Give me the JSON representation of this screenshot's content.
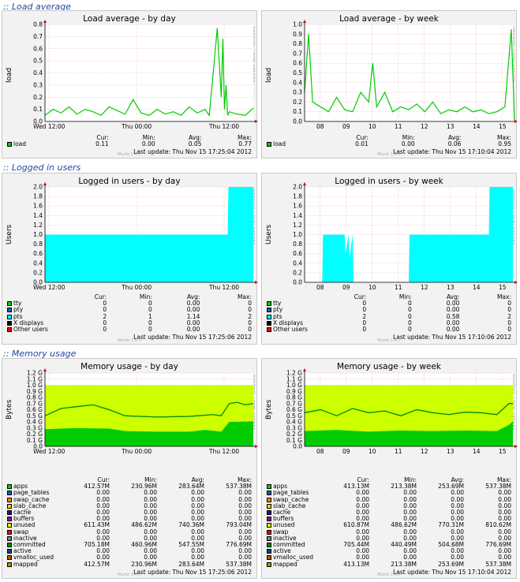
{
  "sections": [
    {
      "title": ":: Load average"
    },
    {
      "title": ":: Logged in users"
    },
    {
      "title": ":: Memory usage"
    }
  ],
  "rrd_label": "RRDTOOL / TOBI OETIKER",
  "munin": "Munin 1.4.7",
  "graphs": [
    {
      "id": "load-day",
      "title": "Load average - by day",
      "ylabel": "load",
      "last_update": "Last update: Thu Nov 15 17:25:04 2012",
      "legend_headers": [
        "Cur:",
        "Min:",
        "Avg:",
        "Max:"
      ],
      "legend": [
        {
          "name": "load",
          "color": "#00cc00",
          "cur": "0.11",
          "min": "0.00",
          "avg": "0.05",
          "max": "0.77"
        }
      ]
    },
    {
      "id": "load-week",
      "title": "Load average - by week",
      "ylabel": "load",
      "last_update": "Last update: Thu Nov 15 17:10:04 2012",
      "legend_headers": [
        "Cur:",
        "Min:",
        "Avg:",
        "Max:"
      ],
      "legend": [
        {
          "name": "load",
          "color": "#00cc00",
          "cur": "0.01",
          "min": "0.00",
          "avg": "0.06",
          "max": "0.95"
        }
      ]
    },
    {
      "id": "users-day",
      "title": "Logged in users - by day",
      "ylabel": "Users",
      "last_update": "Last update: Thu Nov 15 17:25:06 2012",
      "legend_headers": [
        "Cur:",
        "Min:",
        "Avg:",
        "Max:"
      ],
      "legend": [
        {
          "name": "tty",
          "color": "#00cc00",
          "cur": "0",
          "min": "0",
          "avg": "0.00",
          "max": "0"
        },
        {
          "name": "pty",
          "color": "#0066b3",
          "cur": "0",
          "min": "0",
          "avg": "0.00",
          "max": "0"
        },
        {
          "name": "pts",
          "color": "#00ffff",
          "cur": "2",
          "min": "1",
          "avg": "1.14",
          "max": "2"
        },
        {
          "name": "X displays",
          "color": "#000000",
          "cur": "0",
          "min": "0",
          "avg": "0.00",
          "max": "0"
        },
        {
          "name": "Other users",
          "color": "#ff0000",
          "cur": "0",
          "min": "0",
          "avg": "0.00",
          "max": "0"
        }
      ]
    },
    {
      "id": "users-week",
      "title": "Logged in users - by week",
      "ylabel": "Users",
      "last_update": "Last update: Thu Nov 15 17:10:06 2012",
      "legend_headers": [
        "Cur:",
        "Min:",
        "Avg:",
        "Max:"
      ],
      "legend": [
        {
          "name": "tty",
          "color": "#00cc00",
          "cur": "0",
          "min": "0",
          "avg": "0.00",
          "max": "0"
        },
        {
          "name": "pty",
          "color": "#0066b3",
          "cur": "0",
          "min": "0",
          "avg": "0.00",
          "max": "0"
        },
        {
          "name": "pts",
          "color": "#00ffff",
          "cur": "2",
          "min": "0",
          "avg": "0.58",
          "max": "2"
        },
        {
          "name": "X displays",
          "color": "#000000",
          "cur": "0",
          "min": "0",
          "avg": "0.00",
          "max": "0"
        },
        {
          "name": "Other users",
          "color": "#ff0000",
          "cur": "0",
          "min": "0",
          "avg": "0.00",
          "max": "0"
        }
      ]
    },
    {
      "id": "mem-day",
      "title": "Memory usage - by day",
      "ylabel": "Bytes",
      "last_update": "Last update: Thu Nov 15 17:25:06 2012",
      "legend_headers": [
        "Cur:",
        "Min:",
        "Avg:",
        "Max:"
      ],
      "legend": [
        {
          "name": "apps",
          "color": "#00cc00",
          "cur": "412.57M",
          "min": "230.96M",
          "avg": "283.64M",
          "max": "537.38M"
        },
        {
          "name": "page_tables",
          "color": "#0066b3",
          "cur": "0.00",
          "min": "0.00",
          "avg": "0.00",
          "max": "0.00"
        },
        {
          "name": "swap_cache",
          "color": "#ff8000",
          "cur": "0.00",
          "min": "0.00",
          "avg": "0.00",
          "max": "0.00"
        },
        {
          "name": "slab_cache",
          "color": "#ffcc00",
          "cur": "0.00",
          "min": "0.00",
          "avg": "0.00",
          "max": "0.00"
        },
        {
          "name": "cache",
          "color": "#330099",
          "cur": "0.00",
          "min": "0.00",
          "avg": "0.00",
          "max": "0.00"
        },
        {
          "name": "buffers",
          "color": "#990099",
          "cur": "0.00",
          "min": "0.00",
          "avg": "0.00",
          "max": "0.00"
        },
        {
          "name": "unused",
          "color": "#ccff00",
          "cur": "611.43M",
          "min": "486.62M",
          "avg": "740.36M",
          "max": "793.04M"
        },
        {
          "name": "swap",
          "color": "#ff0000",
          "cur": "0.00",
          "min": "0.00",
          "avg": "0.00",
          "max": "0.00"
        },
        {
          "name": "inactive",
          "color": "#808080",
          "cur": "0.00",
          "min": "0.00",
          "avg": "0.00",
          "max": "0.00"
        },
        {
          "name": "committed",
          "color": "#008f00",
          "cur": "705.18M",
          "min": "460.96M",
          "avg": "547.55M",
          "max": "776.69M"
        },
        {
          "name": "active",
          "color": "#00487d",
          "cur": "0.00",
          "min": "0.00",
          "avg": "0.00",
          "max": "0.00"
        },
        {
          "name": "vmalloc_used",
          "color": "#b35a00",
          "cur": "0.00",
          "min": "0.00",
          "avg": "0.00",
          "max": "0.00"
        },
        {
          "name": "mapped",
          "color": "#b38f00",
          "cur": "412.57M",
          "min": "230.96M",
          "avg": "283.64M",
          "max": "537.38M"
        }
      ]
    },
    {
      "id": "mem-week",
      "title": "Memory usage - by week",
      "ylabel": "Bytes",
      "last_update": "Last update: Thu Nov 15 17:10:04 2012",
      "legend_headers": [
        "Cur:",
        "Min:",
        "Avg:",
        "Max:"
      ],
      "legend": [
        {
          "name": "apps",
          "color": "#00cc00",
          "cur": "413.13M",
          "min": "213.38M",
          "avg": "253.69M",
          "max": "537.38M"
        },
        {
          "name": "page_tables",
          "color": "#0066b3",
          "cur": "0.00",
          "min": "0.00",
          "avg": "0.00",
          "max": "0.00"
        },
        {
          "name": "swap_cache",
          "color": "#ff8000",
          "cur": "0.00",
          "min": "0.00",
          "avg": "0.00",
          "max": "0.00"
        },
        {
          "name": "slab_cache",
          "color": "#ffcc00",
          "cur": "0.00",
          "min": "0.00",
          "avg": "0.00",
          "max": "0.00"
        },
        {
          "name": "cache",
          "color": "#330099",
          "cur": "0.00",
          "min": "0.00",
          "avg": "0.00",
          "max": "0.00"
        },
        {
          "name": "buffers",
          "color": "#990099",
          "cur": "0.00",
          "min": "0.00",
          "avg": "0.00",
          "max": "0.00"
        },
        {
          "name": "unused",
          "color": "#ccff00",
          "cur": "610.87M",
          "min": "486.62M",
          "avg": "770.31M",
          "max": "810.62M"
        },
        {
          "name": "swap",
          "color": "#ff0000",
          "cur": "0.00",
          "min": "0.00",
          "avg": "0.00",
          "max": "0.00"
        },
        {
          "name": "inactive",
          "color": "#808080",
          "cur": "0.00",
          "min": "0.00",
          "avg": "0.00",
          "max": "0.00"
        },
        {
          "name": "committed",
          "color": "#008f00",
          "cur": "705.44M",
          "min": "440.49M",
          "avg": "504.68M",
          "max": "776.69M"
        },
        {
          "name": "active",
          "color": "#00487d",
          "cur": "0.00",
          "min": "0.00",
          "avg": "0.00",
          "max": "0.00"
        },
        {
          "name": "vmalloc_used",
          "color": "#b35a00",
          "cur": "0.00",
          "min": "0.00",
          "avg": "0.00",
          "max": "0.00"
        },
        {
          "name": "mapped",
          "color": "#b38f00",
          "cur": "413.13M",
          "min": "213.38M",
          "avg": "253.69M",
          "max": "537.38M"
        }
      ]
    }
  ],
  "chart_data": [
    {
      "type": "line",
      "title": "Load average - by day",
      "ylabel": "load",
      "ylim": [
        0,
        0.8
      ],
      "yticks": [
        "0.0",
        "0.1",
        "0.2",
        "0.3",
        "0.4",
        "0.5",
        "0.6",
        "0.7",
        "0.8"
      ],
      "xticks": [
        "Wed 12:00",
        "Thu 00:00",
        "Thu 12:00"
      ],
      "series": [
        {
          "name": "load",
          "x": [
            0,
            10,
            20,
            30,
            40,
            50,
            60,
            70,
            80,
            90,
            100,
            110,
            120,
            130,
            140,
            150,
            160,
            170,
            180,
            190,
            200,
            205,
            210,
            215,
            220,
            222,
            224,
            226,
            228,
            230,
            240,
            250,
            260
          ],
          "y": [
            0.05,
            0.1,
            0.07,
            0.12,
            0.06,
            0.1,
            0.08,
            0.05,
            0.12,
            0.09,
            0.06,
            0.18,
            0.07,
            0.05,
            0.1,
            0.06,
            0.08,
            0.05,
            0.12,
            0.07,
            0.1,
            0.05,
            0.4,
            0.77,
            0.2,
            0.68,
            0.1,
            0.3,
            0.05,
            0.08,
            0.06,
            0.05,
            0.11
          ]
        }
      ]
    },
    {
      "type": "line",
      "title": "Load average - by week",
      "ylabel": "load",
      "ylim": [
        0,
        1.0
      ],
      "yticks": [
        "0.0",
        "0.1",
        "0.2",
        "0.3",
        "0.4",
        "0.5",
        "0.6",
        "0.7",
        "0.8",
        "0.9",
        "1.0"
      ],
      "xticks": [
        "08",
        "09",
        "10",
        "11",
        "12",
        "13",
        "14",
        "15"
      ],
      "series": [
        {
          "name": "load",
          "x": [
            0,
            5,
            10,
            20,
            30,
            40,
            50,
            60,
            70,
            80,
            85,
            90,
            100,
            110,
            120,
            130,
            140,
            150,
            160,
            170,
            180,
            190,
            200,
            210,
            220,
            230,
            240,
            250,
            258,
            262
          ],
          "y": [
            0.3,
            0.9,
            0.2,
            0.15,
            0.1,
            0.25,
            0.12,
            0.1,
            0.3,
            0.2,
            0.6,
            0.15,
            0.3,
            0.1,
            0.15,
            0.12,
            0.18,
            0.1,
            0.2,
            0.08,
            0.12,
            0.1,
            0.15,
            0.1,
            0.12,
            0.08,
            0.1,
            0.15,
            0.95,
            0.01
          ]
        }
      ]
    },
    {
      "type": "area",
      "title": "Logged in users - by day",
      "ylabel": "Users",
      "ylim": [
        0,
        2.0
      ],
      "yticks": [
        "0.0",
        "0.2",
        "0.4",
        "0.6",
        "0.8",
        "1.0",
        "1.2",
        "1.4",
        "1.6",
        "1.8",
        "2.0"
      ],
      "xticks": [
        "Wed 12:00",
        "Thu 00:00",
        "Thu 12:00"
      ],
      "series": [
        {
          "name": "pts",
          "x": [
            0,
            228,
            229,
            260
          ],
          "y": [
            1,
            1,
            2,
            2
          ]
        }
      ]
    },
    {
      "type": "area",
      "title": "Logged in users - by week",
      "ylabel": "Users",
      "ylim": [
        0,
        2.0
      ],
      "yticks": [
        "0.0",
        "0.2",
        "0.4",
        "0.6",
        "0.8",
        "1.0",
        "1.2",
        "1.4",
        "1.6",
        "1.8",
        "2.0"
      ],
      "xticks": [
        "08",
        "09",
        "10",
        "11",
        "12",
        "13",
        "14",
        "15"
      ],
      "series": [
        {
          "name": "pts",
          "x": [
            0,
            22,
            23,
            50,
            51,
            55,
            56,
            60,
            61,
            130,
            131,
            230,
            231,
            232,
            260
          ],
          "y": [
            0,
            0,
            1,
            1,
            0.6,
            1,
            0.5,
            1,
            0,
            0,
            1,
            1,
            2,
            2,
            2
          ]
        }
      ]
    },
    {
      "type": "area",
      "title": "Memory usage - by day",
      "ylabel": "Bytes",
      "ylim": [
        0,
        1.2
      ],
      "yticks": [
        "0.0",
        "0.1 G",
        "0.2 G",
        "0.3 G",
        "0.4 G",
        "0.5 G",
        "0.6 G",
        "0.7 G",
        "0.8 G",
        "0.9 G",
        "1.0 G",
        "1.1 G",
        "1.2 G"
      ],
      "xticks": [
        "Wed 12:00",
        "Thu 00:00",
        "Thu 12:00"
      ],
      "series": [
        {
          "name": "apps",
          "x": [
            0,
            40,
            80,
            100,
            140,
            180,
            200,
            220,
            230,
            260
          ],
          "y": [
            0.28,
            0.3,
            0.29,
            0.25,
            0.24,
            0.24,
            0.27,
            0.24,
            0.4,
            0.41
          ]
        },
        {
          "name": "unused",
          "x": [
            0,
            260
          ],
          "y": [
            1.0,
            1.0
          ]
        },
        {
          "name": "committed",
          "x": [
            0,
            20,
            40,
            60,
            80,
            100,
            140,
            180,
            210,
            220,
            230,
            240,
            250,
            260
          ],
          "y": [
            0.5,
            0.62,
            0.65,
            0.68,
            0.6,
            0.5,
            0.48,
            0.49,
            0.52,
            0.5,
            0.7,
            0.72,
            0.68,
            0.7
          ]
        }
      ]
    },
    {
      "type": "area",
      "title": "Memory usage - by week",
      "ylabel": "Bytes",
      "ylim": [
        0,
        1.2
      ],
      "yticks": [
        "0.0",
        "0.1 G",
        "0.2 G",
        "0.3 G",
        "0.4 G",
        "0.5 G",
        "0.6 G",
        "0.7 G",
        "0.8 G",
        "0.9 G",
        "1.0 G",
        "1.1 G",
        "1.2 G"
      ],
      "xticks": [
        "08",
        "09",
        "10",
        "11",
        "12",
        "13",
        "14",
        "15"
      ],
      "series": [
        {
          "name": "apps",
          "x": [
            0,
            40,
            80,
            120,
            160,
            200,
            240,
            255,
            260
          ],
          "y": [
            0.25,
            0.27,
            0.24,
            0.26,
            0.25,
            0.26,
            0.25,
            0.35,
            0.41
          ]
        },
        {
          "name": "unused",
          "x": [
            0,
            260
          ],
          "y": [
            1.0,
            1.0
          ]
        },
        {
          "name": "committed",
          "x": [
            0,
            20,
            40,
            60,
            80,
            100,
            120,
            140,
            160,
            180,
            200,
            220,
            240,
            255,
            260
          ],
          "y": [
            0.55,
            0.6,
            0.5,
            0.62,
            0.55,
            0.58,
            0.5,
            0.6,
            0.55,
            0.52,
            0.56,
            0.55,
            0.52,
            0.7,
            0.7
          ]
        }
      ]
    }
  ]
}
